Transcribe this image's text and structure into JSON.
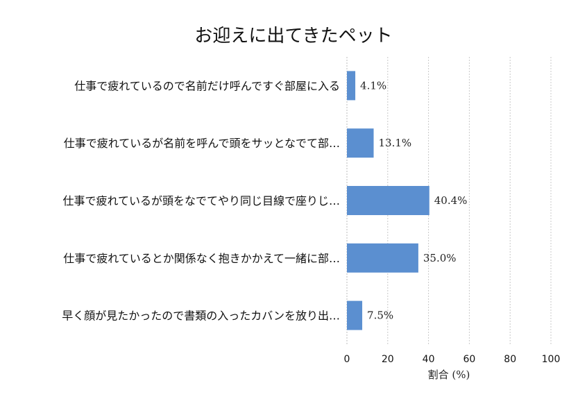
{
  "chart_data": {
    "type": "bar",
    "orientation": "horizontal",
    "title": "お迎えに出てきたペット",
    "xlabel": "割合 (%)",
    "ylabel": "",
    "xlim": [
      0,
      100
    ],
    "xticks": [
      "0",
      "20",
      "40",
      "60",
      "80",
      "100"
    ],
    "grid": "vertical dashed",
    "categories": [
      "仕事で疲れているので名前だけ呼んですぐ部屋に入る",
      "仕事で疲れているが名前を呼んで頭をサッとなでて部…",
      "仕事で疲れているが頭をなでてやり同じ目線で座りじ…",
      "仕事で疲れているとか関係なく抱きかかえて一緒に部…",
      "早く顔が見たかったので書類の入ったカバンを放り出…"
    ],
    "values": [
      4.1,
      13.1,
      40.4,
      35.0,
      7.5
    ],
    "value_labels": [
      "4.1%",
      "13.1%",
      "40.4%",
      "35.0%",
      "7.5%"
    ],
    "bar_color": "#5b8fd0"
  }
}
